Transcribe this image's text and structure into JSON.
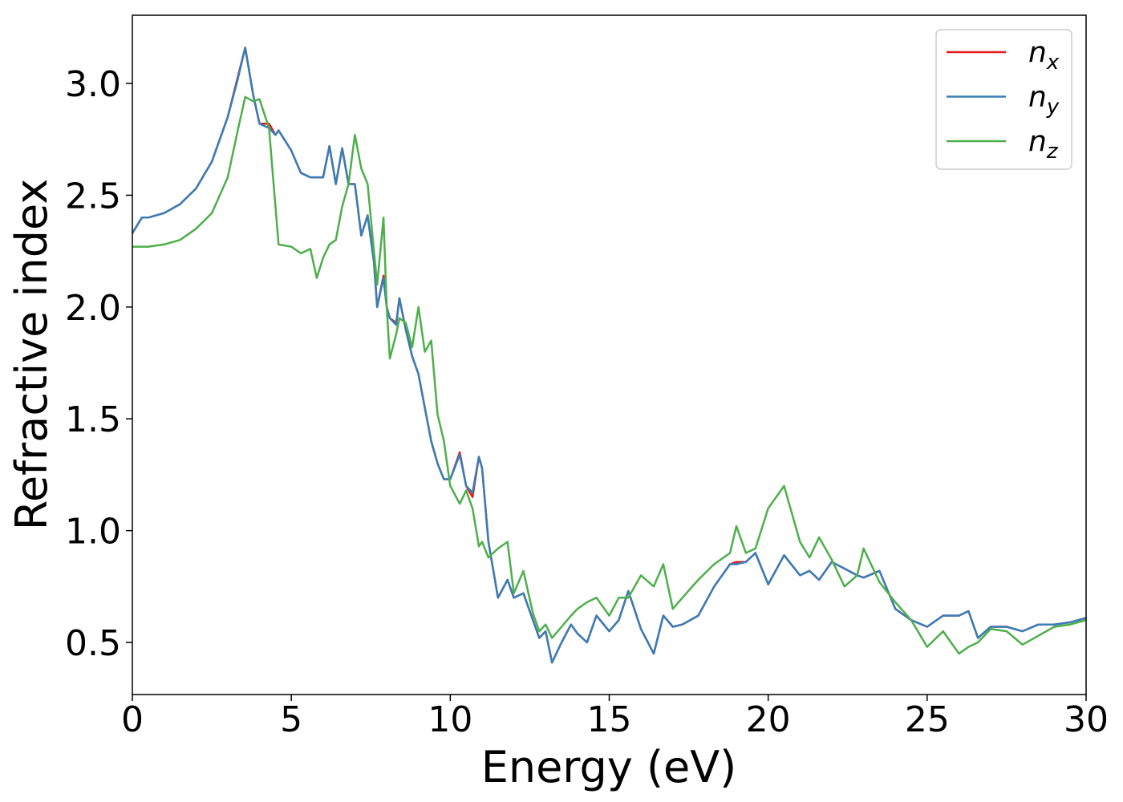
{
  "chart_data": {
    "type": "line",
    "x_label": "Energy (eV)",
    "y_label": "Refractive index",
    "x": [
      0,
      0.3,
      0.5,
      1.0,
      1.5,
      2.0,
      2.5,
      3.0,
      3.3,
      3.55,
      3.8,
      4.0,
      4.3,
      4.5,
      4.6,
      5.0,
      5.3,
      5.6,
      5.8,
      6.0,
      6.2,
      6.4,
      6.6,
      6.8,
      7.0,
      7.2,
      7.4,
      7.6,
      7.7,
      7.9,
      8.0,
      8.1,
      8.3,
      8.4,
      8.6,
      8.8,
      9.0,
      9.2,
      9.4,
      9.6,
      9.8,
      10.0,
      10.3,
      10.5,
      10.7,
      10.9,
      11.0,
      11.2,
      11.5,
      11.8,
      12.0,
      12.3,
      12.6,
      12.8,
      13.0,
      13.2,
      13.5,
      13.8,
      14.0,
      14.3,
      14.6,
      15.0,
      15.3,
      15.6,
      16.0,
      16.4,
      16.7,
      17.0,
      17.3,
      17.8,
      18.3,
      18.8,
      19.0,
      19.3,
      19.6,
      20.0,
      20.5,
      21.0,
      21.3,
      21.6,
      22.0,
      22.4,
      22.8,
      23.0,
      23.5,
      24.0,
      24.5,
      25.0,
      25.5,
      26.0,
      26.3,
      26.6,
      27.0,
      27.5,
      28.0,
      28.5,
      29.0,
      29.5,
      30.0
    ],
    "series": [
      {
        "name": "n_x",
        "color": "#e41a1c",
        "values": [
          2.33,
          2.4,
          2.4,
          2.42,
          2.46,
          2.53,
          2.65,
          2.85,
          3.02,
          3.16,
          2.95,
          2.82,
          2.82,
          2.77,
          2.79,
          2.7,
          2.6,
          2.58,
          2.58,
          2.58,
          2.72,
          2.55,
          2.71,
          2.55,
          2.55,
          2.32,
          2.41,
          2.2,
          2.0,
          2.14,
          2.0,
          1.95,
          1.93,
          2.04,
          1.9,
          1.78,
          1.7,
          1.55,
          1.4,
          1.3,
          1.23,
          1.23,
          1.35,
          1.2,
          1.15,
          1.33,
          1.28,
          0.95,
          0.7,
          0.78,
          0.7,
          0.72,
          0.6,
          0.52,
          0.55,
          0.41,
          0.5,
          0.58,
          0.54,
          0.5,
          0.62,
          0.55,
          0.6,
          0.73,
          0.56,
          0.45,
          0.62,
          0.57,
          0.58,
          0.62,
          0.75,
          0.85,
          0.86,
          0.86,
          0.9,
          0.76,
          0.89,
          0.8,
          0.82,
          0.78,
          0.86,
          0.83,
          0.8,
          0.79,
          0.82,
          0.65,
          0.6,
          0.57,
          0.62,
          0.62,
          0.64,
          0.52,
          0.57,
          0.57,
          0.55,
          0.58,
          0.58,
          0.59,
          0.61
        ]
      },
      {
        "name": "n_y",
        "color": "#377eb8",
        "values": [
          2.33,
          2.4,
          2.4,
          2.42,
          2.46,
          2.53,
          2.65,
          2.85,
          3.01,
          3.16,
          2.95,
          2.82,
          2.8,
          2.77,
          2.79,
          2.7,
          2.6,
          2.58,
          2.58,
          2.58,
          2.72,
          2.55,
          2.71,
          2.55,
          2.55,
          2.32,
          2.41,
          2.2,
          2.0,
          2.13,
          2.0,
          1.95,
          1.92,
          2.04,
          1.9,
          1.78,
          1.7,
          1.55,
          1.4,
          1.3,
          1.23,
          1.23,
          1.34,
          1.2,
          1.17,
          1.33,
          1.28,
          0.95,
          0.7,
          0.78,
          0.7,
          0.72,
          0.6,
          0.52,
          0.55,
          0.41,
          0.5,
          0.58,
          0.54,
          0.5,
          0.62,
          0.55,
          0.6,
          0.73,
          0.56,
          0.45,
          0.62,
          0.57,
          0.58,
          0.62,
          0.75,
          0.85,
          0.85,
          0.86,
          0.9,
          0.76,
          0.89,
          0.8,
          0.82,
          0.78,
          0.86,
          0.83,
          0.8,
          0.79,
          0.82,
          0.65,
          0.6,
          0.57,
          0.62,
          0.62,
          0.64,
          0.52,
          0.57,
          0.57,
          0.55,
          0.58,
          0.58,
          0.59,
          0.61
        ]
      },
      {
        "name": "n_z",
        "color": "#4daf4a",
        "values": [
          2.27,
          2.27,
          2.27,
          2.28,
          2.3,
          2.35,
          2.42,
          2.58,
          2.78,
          2.94,
          2.92,
          2.93,
          2.8,
          2.45,
          2.28,
          2.27,
          2.24,
          2.26,
          2.13,
          2.22,
          2.28,
          2.3,
          2.45,
          2.55,
          2.77,
          2.62,
          2.55,
          2.25,
          2.1,
          2.4,
          2.0,
          1.77,
          1.88,
          1.95,
          1.93,
          1.82,
          2.0,
          1.8,
          1.85,
          1.52,
          1.4,
          1.2,
          1.12,
          1.18,
          1.1,
          0.93,
          0.95,
          0.88,
          0.92,
          0.95,
          0.72,
          0.82,
          0.63,
          0.55,
          0.58,
          0.52,
          0.57,
          0.62,
          0.65,
          0.68,
          0.7,
          0.62,
          0.7,
          0.7,
          0.8,
          0.75,
          0.85,
          0.65,
          0.7,
          0.78,
          0.85,
          0.9,
          1.02,
          0.9,
          0.92,
          1.1,
          1.2,
          0.95,
          0.88,
          0.97,
          0.87,
          0.75,
          0.8,
          0.92,
          0.77,
          0.68,
          0.6,
          0.48,
          0.55,
          0.45,
          0.48,
          0.5,
          0.56,
          0.55,
          0.49,
          0.53,
          0.57,
          0.58,
          0.6
        ]
      }
    ],
    "xlim": [
      0,
      30
    ],
    "xticks": [
      0,
      5,
      10,
      15,
      20,
      25,
      30
    ],
    "ylim": [
      0.267,
      3.305
    ],
    "yticks": [
      0.5,
      {
        "value": 1,
        "label": "1.0"
      },
      1.5,
      {
        "value": 2,
        "label": "2.0"
      },
      2.5,
      {
        "value": 3,
        "label": "3.0"
      }
    ],
    "grid": false,
    "legend": "upper right"
  }
}
